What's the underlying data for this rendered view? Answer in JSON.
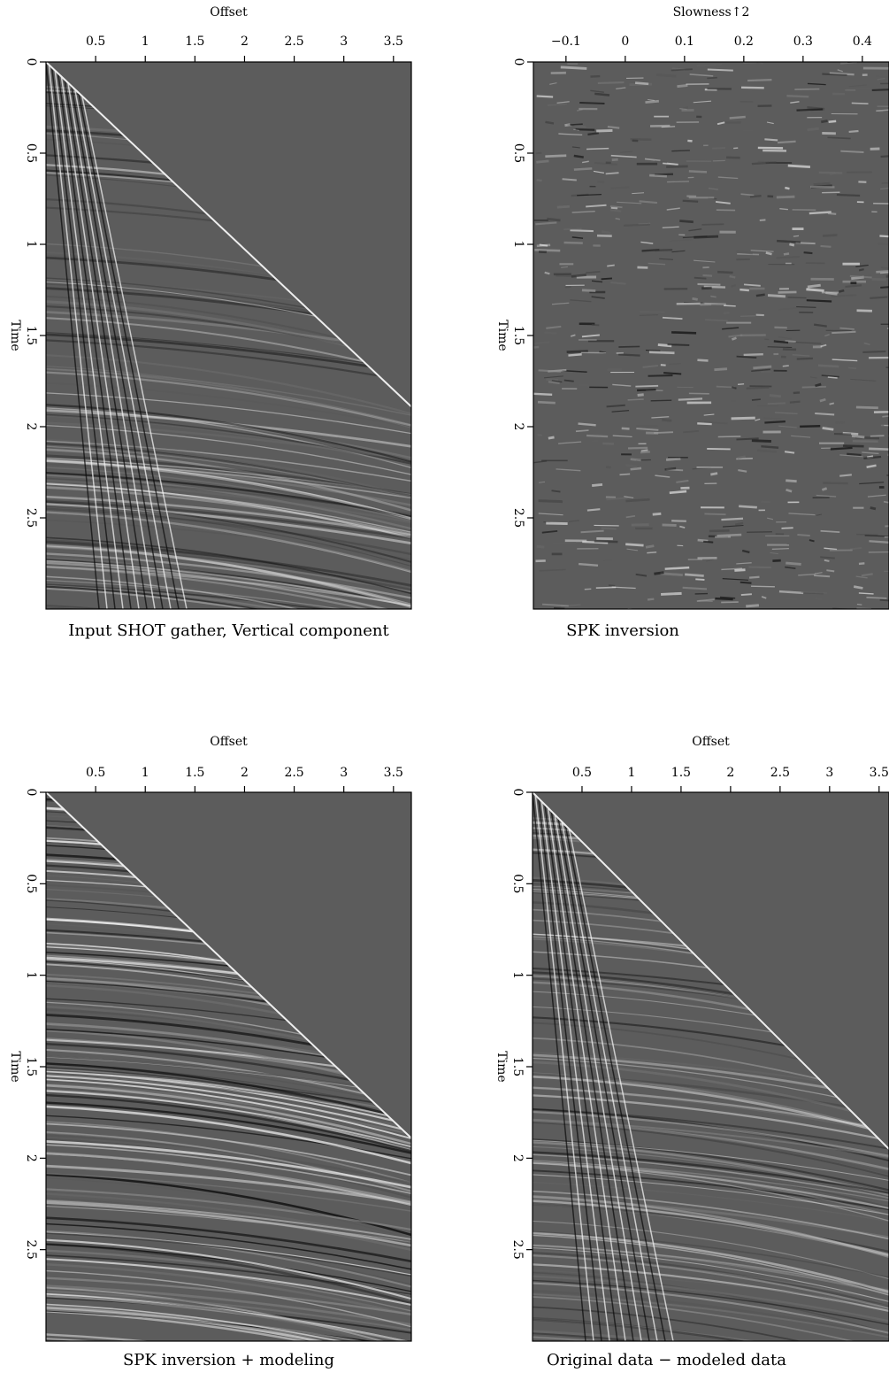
{
  "chart_data": [
    {
      "type": "seismic",
      "title": "Offset",
      "ylabel": "Time",
      "caption": "Input SHOT gather, Vertical component",
      "xlim": [
        0,
        3.68
      ],
      "xticks": [
        0.5,
        1,
        1.5,
        2,
        2.5,
        3,
        3.5
      ],
      "ylim": [
        0,
        3
      ],
      "yticks": [
        0,
        0.5,
        1,
        1.5,
        2,
        2.5
      ]
    },
    {
      "type": "seismic",
      "title": "Slowness↑2",
      "ylabel": "Time",
      "caption": "SPK inversion",
      "xlim": [
        -0.155,
        0.445
      ],
      "xticks": [
        {
          "value": -0.1,
          "label": "−0.1"
        },
        0,
        0.1,
        0.2,
        0.3,
        0.4
      ],
      "ylim": [
        0,
        3
      ],
      "yticks": [
        0,
        0.5,
        1,
        1.5,
        2,
        2.5
      ]
    },
    {
      "type": "seismic",
      "title": "Offset",
      "ylabel": "Time",
      "caption": "SPK inversion + modeling",
      "xlim": [
        0,
        3.68
      ],
      "xticks": [
        0.5,
        1,
        1.5,
        2,
        2.5,
        3,
        3.5
      ],
      "ylim": [
        0,
        3
      ],
      "yticks": [
        0,
        0.5,
        1,
        1.5,
        2,
        2.5
      ]
    },
    {
      "type": "seismic",
      "title": "Offset",
      "ylabel": "Time",
      "caption": "Original data − modeled data",
      "xlim": [
        0,
        3.6
      ],
      "xticks": [
        0.5,
        1,
        1.5,
        2,
        2.5,
        3,
        3.5
      ],
      "ylim": [
        0,
        3
      ],
      "yticks": [
        0,
        0.5,
        1,
        1.5,
        2,
        2.5
      ]
    }
  ]
}
